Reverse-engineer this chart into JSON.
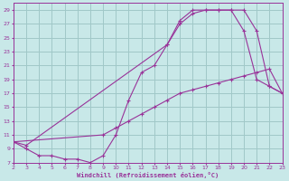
{
  "xlabel": "Windchill (Refroidissement éolien,°C)",
  "background_color": "#c8e8e8",
  "grid_color": "#a0c8c8",
  "line_color": "#993399",
  "xlim": [
    2,
    23
  ],
  "ylim": [
    7,
    30
  ],
  "xticks": [
    2,
    3,
    4,
    5,
    6,
    7,
    8,
    9,
    10,
    11,
    12,
    13,
    14,
    15,
    16,
    17,
    18,
    19,
    20,
    21,
    22,
    23
  ],
  "yticks": [
    7,
    9,
    11,
    13,
    15,
    17,
    19,
    21,
    23,
    25,
    27,
    29
  ],
  "curve1_x": [
    2,
    3,
    4,
    5,
    6,
    7,
    8,
    9,
    10,
    11,
    12,
    13,
    14,
    15,
    16,
    17,
    18,
    19,
    20,
    21,
    22,
    23
  ],
  "curve1_y": [
    10,
    9,
    8,
    8,
    7.5,
    7.5,
    7,
    8,
    11,
    16,
    20,
    21,
    24,
    27,
    28.5,
    29,
    29,
    29,
    29,
    26,
    18,
    17
  ],
  "curve2_x": [
    2,
    3,
    14,
    15,
    16,
    17,
    18,
    19,
    20,
    21,
    22,
    23
  ],
  "curve2_y": [
    10,
    9.5,
    24,
    27.5,
    29,
    29,
    29,
    29,
    26,
    19,
    18,
    17
  ],
  "curve3_x": [
    2,
    9,
    10,
    11,
    12,
    13,
    14,
    15,
    16,
    17,
    18,
    19,
    20,
    21,
    22,
    23
  ],
  "curve3_y": [
    10,
    11,
    12,
    13,
    14,
    15,
    16,
    17,
    17.5,
    18,
    18.5,
    19,
    19.5,
    20,
    20.5,
    17
  ]
}
